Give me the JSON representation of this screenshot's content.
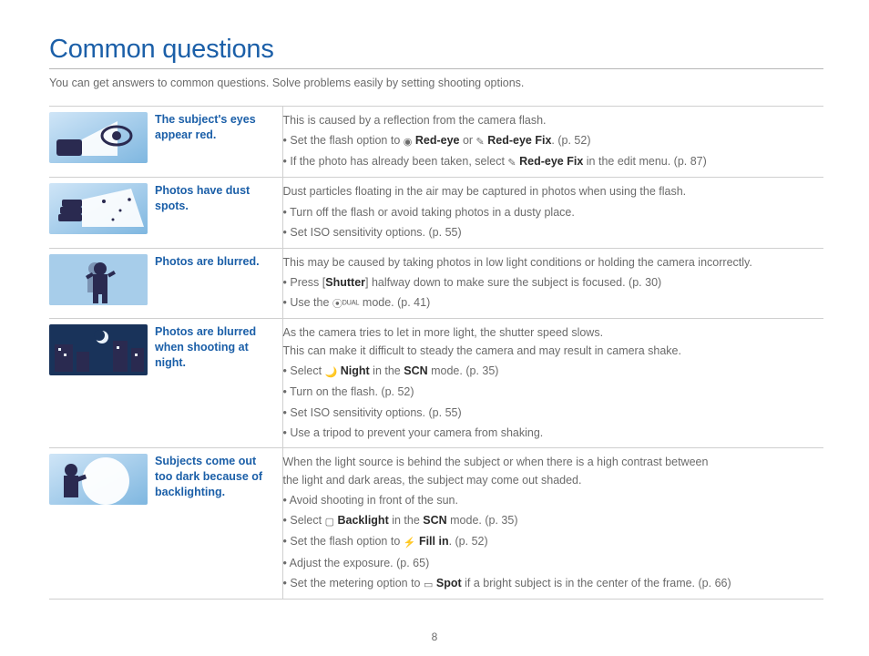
{
  "page": {
    "title": "Common questions",
    "subtitle": "You can get answers to common questions. Solve problems easily by setting shooting options.",
    "page_number": "8",
    "colors": {
      "heading": "#1b5fa8",
      "body_text": "#6b6b6b",
      "bold_text": "#2a2a2a",
      "rule": "#cfcfcf",
      "thumb_gradient_start": "#cfe5f7",
      "thumb_gradient_end": "#7fb7e0",
      "thumb_silhouette": "#2a2a50"
    }
  },
  "rows": [
    {
      "icon": "eye-icon",
      "label": "The subject's eyes appear red.",
      "intro": "This is caused by a reflection from the camera flash.",
      "bullets": [
        {
          "pre": "Set the flash option to ",
          "icon": "◉",
          "bold": "Red-eye",
          "mid": " or ",
          "icon2": "✎",
          "bold2": "Red-eye Fix",
          "post": ". (p. 52)"
        },
        {
          "pre": "If the photo has already been taken, select ",
          "icon": "✎",
          "bold": "Red-eye Fix",
          "post": " in the edit menu. (p. 87)"
        }
      ]
    },
    {
      "icon": "dust-icon",
      "label": "Photos have dust spots.",
      "intro": "Dust particles floating in the air may be captured in photos when using the flash.",
      "bullets": [
        {
          "text": "Turn off the flash or avoid taking photos in a dusty place."
        },
        {
          "text": "Set ISO sensitivity options. (p. 55)"
        }
      ]
    },
    {
      "icon": "blur-person-icon",
      "label": "Photos are blurred.",
      "intro": "This may be caused by taking photos in low light conditions or holding the camera incorrectly.",
      "bullets": [
        {
          "pre": "Press [",
          "bold": "Shutter",
          "post": "] halfway down to make sure the subject is focused. (p. 30)"
        },
        {
          "pre": "Use the ",
          "icon": "⦿ᴰᵁᴬᴸ",
          "post": " mode. (p. 41)"
        }
      ]
    },
    {
      "icon": "night-city-icon",
      "label": "Photos are blurred when shooting at night.",
      "intro": "As the camera tries to let in more light, the shutter speed slows.",
      "intro2": "This can make it difficult to steady the camera and may result in camera shake.",
      "bullets": [
        {
          "pre": "Select ",
          "icon": "🌙",
          "bold": "Night",
          "mid": " in the ",
          "bold2": "SCN",
          "post": " mode. (p. 35)"
        },
        {
          "text": "Turn on the flash. (p. 52)"
        },
        {
          "text": "Set ISO sensitivity options. (p. 55)"
        },
        {
          "text": "Use a tripod to prevent your camera from shaking."
        }
      ]
    },
    {
      "icon": "backlight-icon",
      "label": "Subjects come out too dark because of backlighting.",
      "intro": "When the light source is behind the subject or when there is a high contrast between",
      "intro2": "the light and dark areas, the subject may come out shaded.",
      "bullets": [
        {
          "text": "Avoid shooting in front of the sun."
        },
        {
          "pre": "Select ",
          "icon": "▢",
          "bold": "Backlight",
          "mid": " in the ",
          "bold2": "SCN",
          "post": " mode. (p. 35)"
        },
        {
          "pre": "Set the flash option to ",
          "icon": "⚡",
          "bold": "Fill in",
          "post": ". (p. 52)"
        },
        {
          "text": "Adjust the exposure. (p. 65)"
        },
        {
          "pre": "Set the metering option to ",
          "icon": "▭",
          "bold": "Spot",
          "post": " if a bright subject is in the center of the frame. (p. 66)"
        }
      ]
    }
  ]
}
